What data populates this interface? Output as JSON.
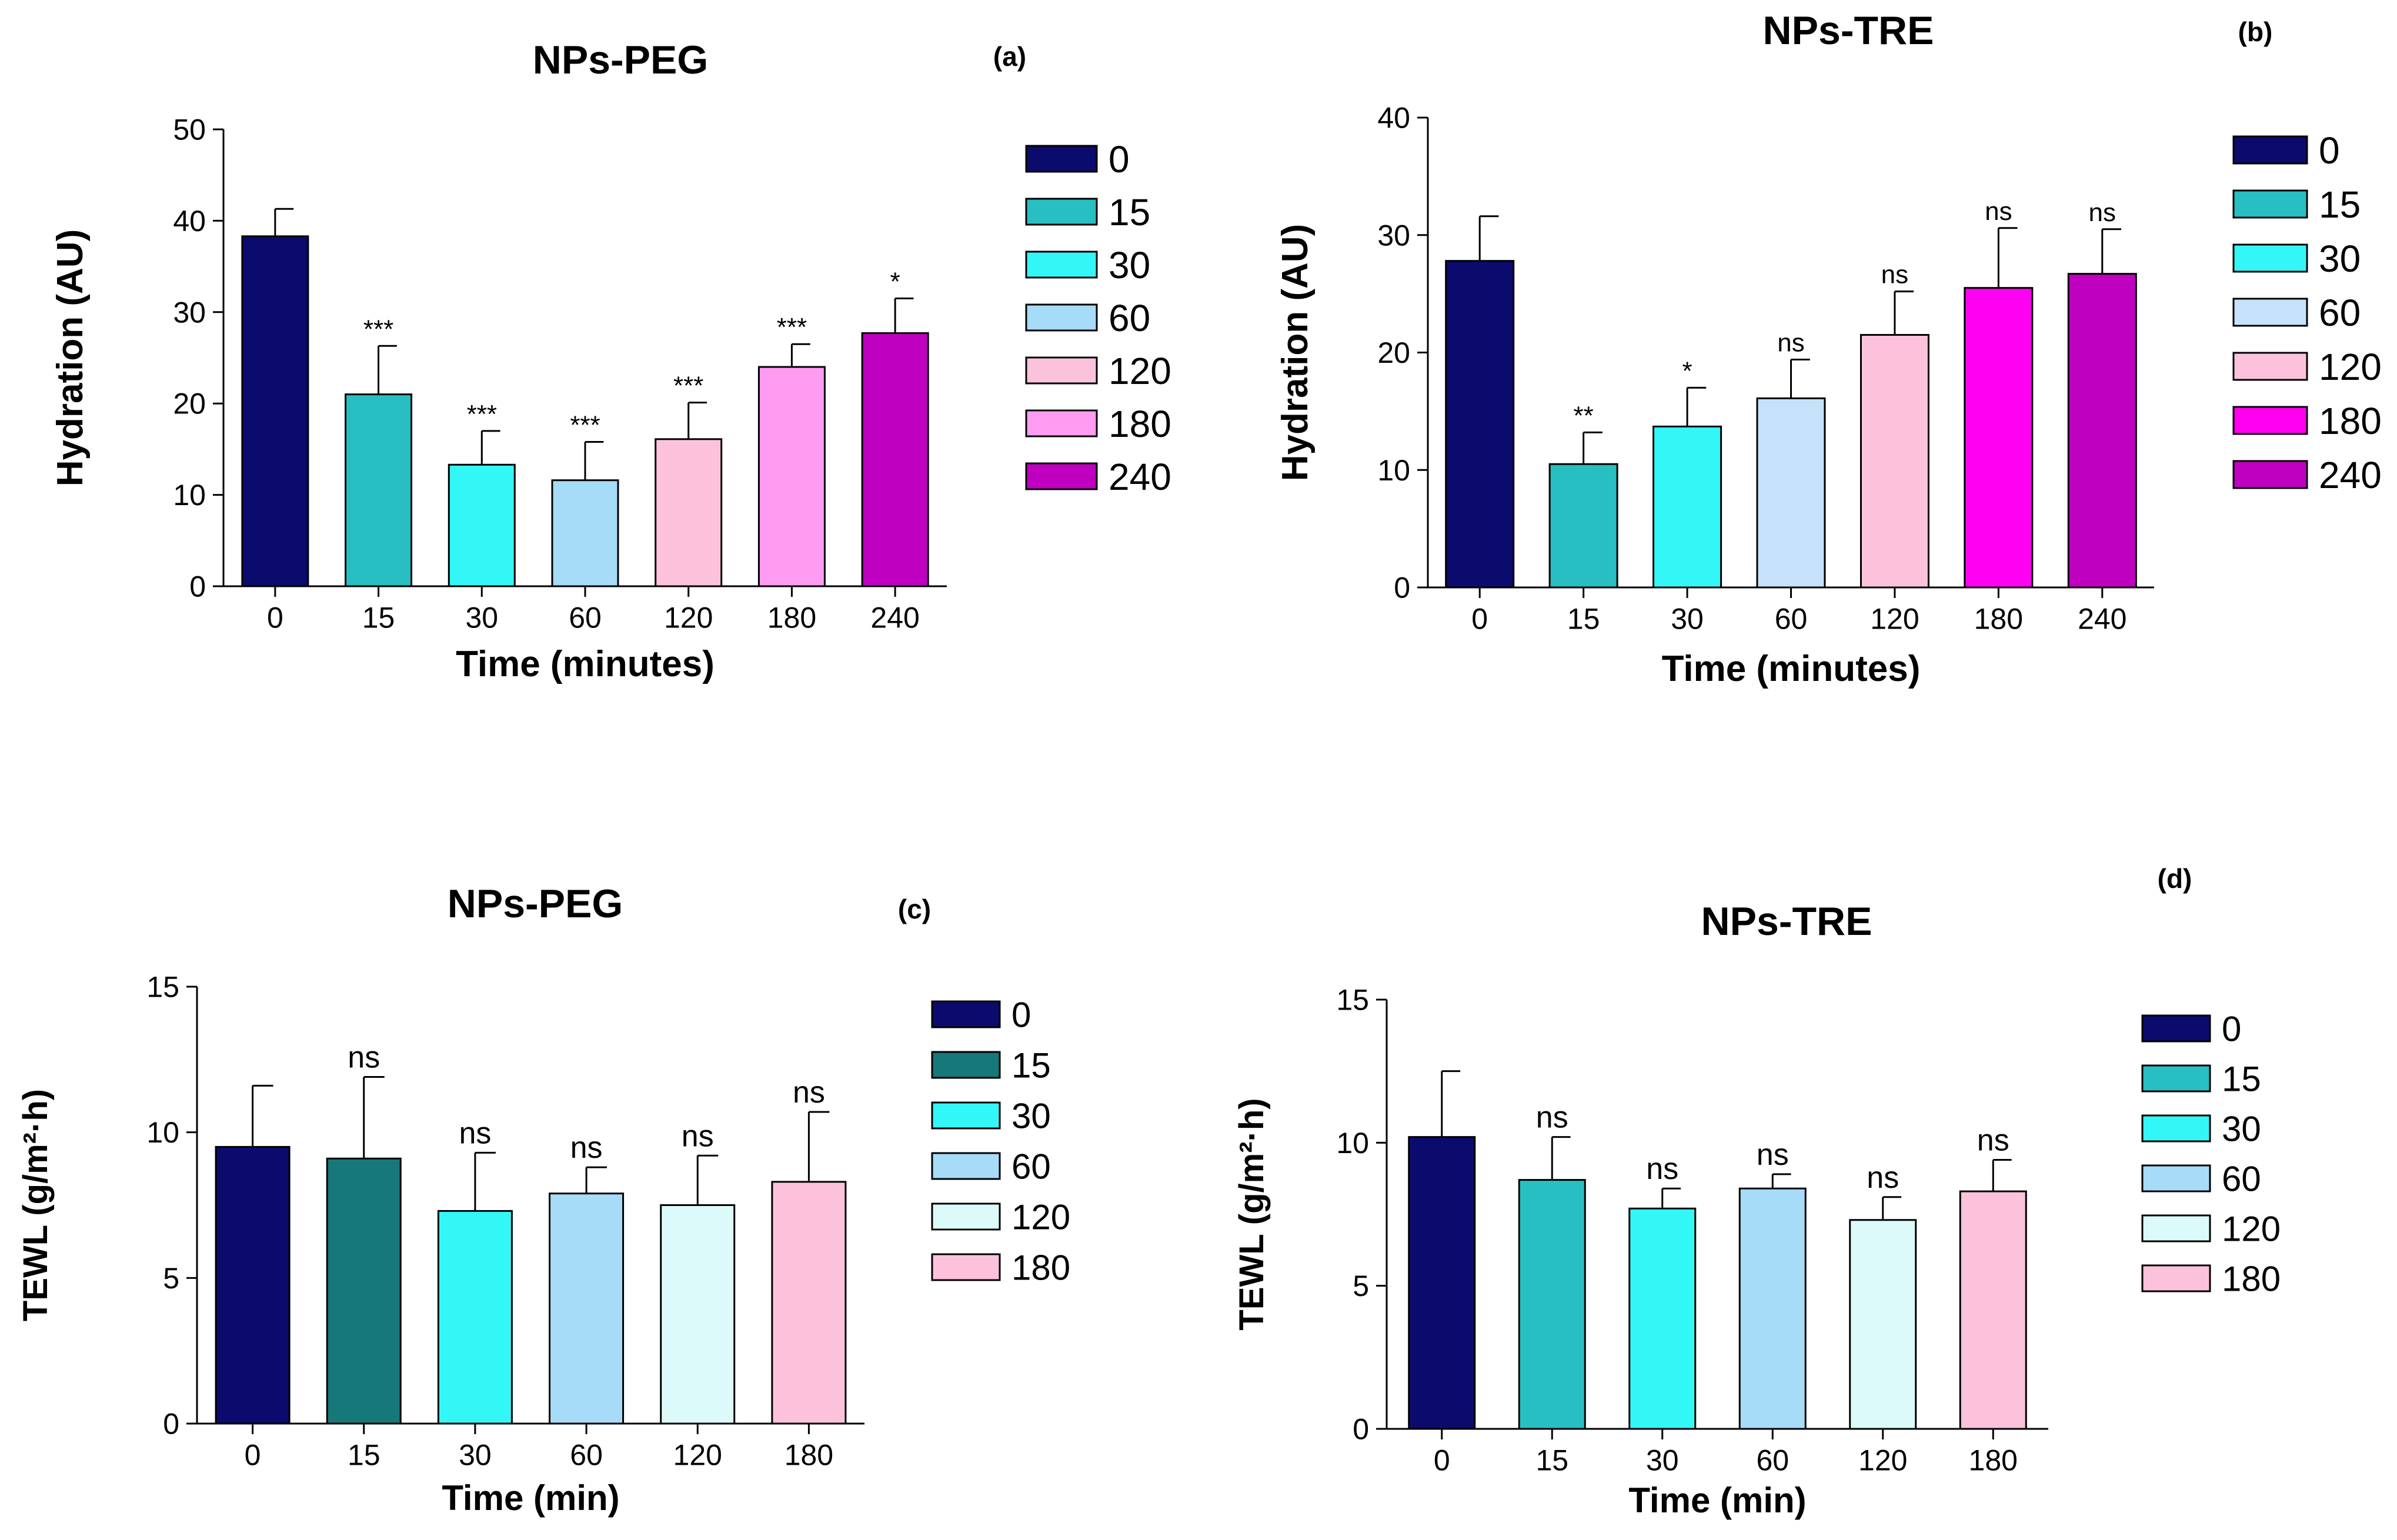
{
  "chart_data": [
    {
      "id": "a",
      "type": "bar",
      "title": "NPs-PEG",
      "panel_label": "(a)",
      "xlabel": "Time (minutes)",
      "ylabel": "Hydration (AU)",
      "ylim": [
        0,
        50
      ],
      "yticks": [
        0,
        10,
        20,
        30,
        40,
        50
      ],
      "categories": [
        "0",
        "15",
        "30",
        "60",
        "120",
        "180",
        "240"
      ],
      "values": [
        38.3,
        21.0,
        13.3,
        11.6,
        16.1,
        24.0,
        27.7
      ],
      "errors": [
        3.0,
        5.3,
        3.7,
        4.2,
        4.0,
        2.5,
        3.8
      ],
      "significance": [
        "",
        "***",
        "***",
        "***",
        "***",
        "***",
        "*"
      ],
      "colors": [
        "#0b0b6e",
        "#27bfc2",
        "#33f7f7",
        "#a6dcf8",
        "#fcc2dc",
        "#ff9cf2",
        "#c000c0"
      ],
      "legend": [
        "0",
        "15",
        "30",
        "60",
        "120",
        "180",
        "240"
      ]
    },
    {
      "id": "b",
      "type": "bar",
      "title": "NPs-TRE",
      "panel_label": "(b)",
      "xlabel": "Time (minutes)",
      "ylabel": "Hydration (AU)",
      "ylim": [
        0,
        40
      ],
      "yticks": [
        0,
        10,
        20,
        30,
        40
      ],
      "categories": [
        "0",
        "15",
        "30",
        "60",
        "120",
        "180",
        "240"
      ],
      "values": [
        27.8,
        10.5,
        13.7,
        16.1,
        21.5,
        25.5,
        26.7
      ],
      "errors": [
        3.8,
        2.7,
        3.3,
        3.3,
        3.7,
        5.1,
        3.8
      ],
      "significance": [
        "",
        "**",
        "*",
        "ns",
        "ns",
        "ns",
        "ns"
      ],
      "colors": [
        "#0b0b6e",
        "#27bfc2",
        "#33f7f7",
        "#c6e2fa",
        "#fcc2dc",
        "#ff00f0",
        "#c000c0"
      ],
      "legend": [
        "0",
        "15",
        "30",
        "60",
        "120",
        "180",
        "240"
      ]
    },
    {
      "id": "c",
      "type": "bar",
      "title": "NPs-PEG",
      "panel_label": "(c)",
      "xlabel": "Time (min)",
      "ylabel": "TEWL (g/m²·h)",
      "ylim": [
        0,
        15
      ],
      "yticks": [
        0,
        5,
        10,
        15
      ],
      "categories": [
        "0",
        "15",
        "30",
        "60",
        "120",
        "180"
      ],
      "values": [
        9.5,
        9.1,
        7.3,
        7.9,
        7.5,
        8.3
      ],
      "errors": [
        2.1,
        2.8,
        2.0,
        0.9,
        1.7,
        2.4
      ],
      "significance": [
        "",
        "ns",
        "ns",
        "ns",
        "ns",
        "ns"
      ],
      "colors": [
        "#0b0b6e",
        "#167878",
        "#33f7f7",
        "#a6dcf8",
        "#dcfafa",
        "#fcc2dc"
      ],
      "legend": [
        "0",
        "15",
        "30",
        "60",
        "120",
        "180"
      ]
    },
    {
      "id": "d",
      "type": "bar",
      "title": "NPs-TRE",
      "panel_label": "(d)",
      "xlabel": "Time (min)",
      "ylabel": "TEWL (g/m²·h)",
      "ylim": [
        0,
        15
      ],
      "yticks": [
        0,
        5,
        10,
        15
      ],
      "categories": [
        "0",
        "15",
        "30",
        "60",
        "120",
        "180"
      ],
      "values": [
        10.2,
        8.7,
        7.7,
        8.4,
        7.3,
        8.3
      ],
      "errors": [
        2.3,
        1.5,
        0.7,
        0.5,
        0.8,
        1.1
      ],
      "significance": [
        "",
        "ns",
        "ns",
        "ns",
        "ns",
        "ns"
      ],
      "colors": [
        "#0b0b6e",
        "#27bfc2",
        "#33f7f7",
        "#a6dcf8",
        "#dcfafa",
        "#fcc2dc"
      ],
      "legend": [
        "0",
        "15",
        "30",
        "60",
        "120",
        "180"
      ]
    }
  ]
}
